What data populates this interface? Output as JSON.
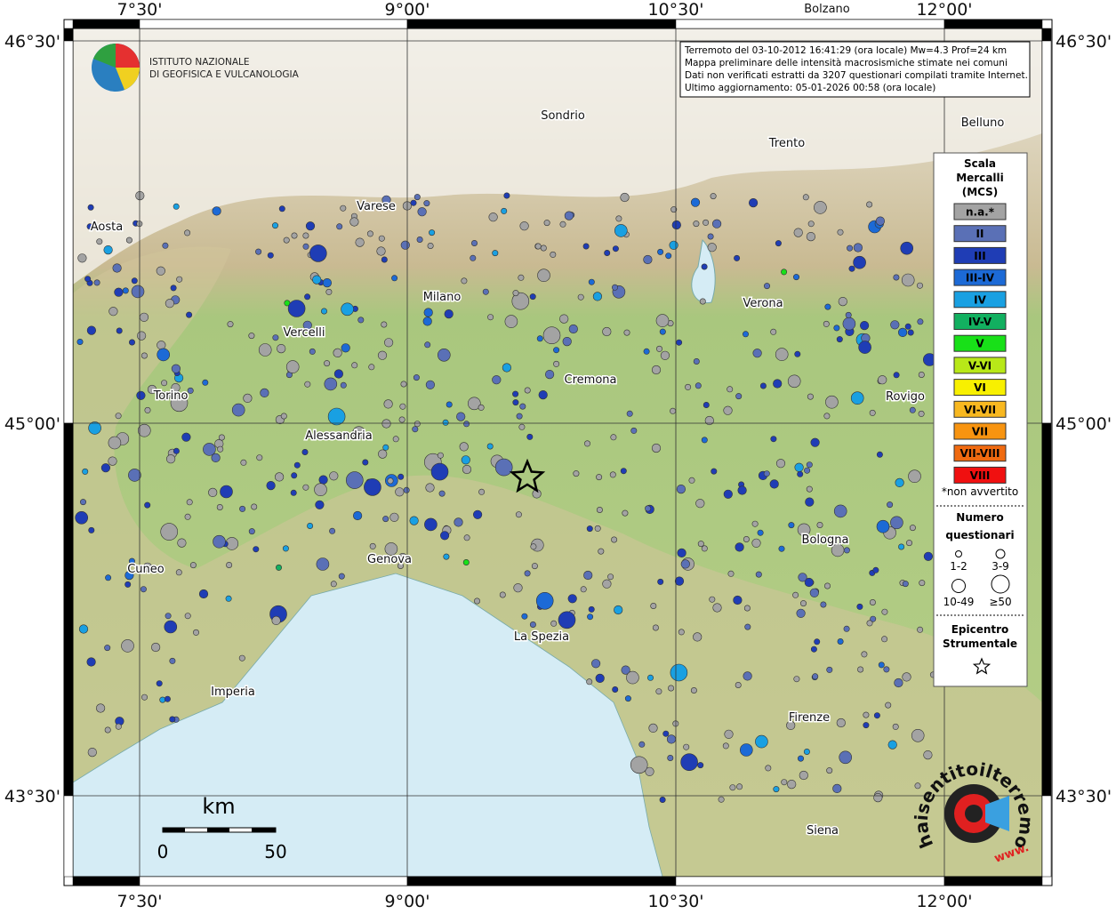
{
  "header": {
    "institute": [
      "ISTITUTO NAZIONALE",
      "DI GEOFISICA E VULCANOLOGIA"
    ],
    "info": [
      "Terremoto del 03-10-2012 16:41:29 (ora locale) Mw=4.3 Prof=24 km",
      "Mappa preliminare delle intensità macrosismiche stimate nei comuni",
      "Dati non verificati estratti da 3207 questionari compilati tramite Internet.",
      "Ultimo aggiornamento: 05-01-2026 00:58 (ora locale)"
    ]
  },
  "map": {
    "longitude_labels": [
      "7°30'",
      "9°00'",
      "10°30'",
      "12°00'"
    ],
    "latitude_labels": [
      "46°30'",
      "45°00'",
      "43°30'"
    ],
    "places": [
      "Bolzano",
      "Sondrio",
      "Belluno",
      "Trento",
      "Varese",
      "Aosta",
      "Milano",
      "Verona",
      "Vercelli",
      "Cremona",
      "Torino",
      "Rovigo",
      "Alessandria",
      "Bologna",
      "Cuneo",
      "Genova",
      "La Spezia",
      "Imperia",
      "Firenze",
      "Siena"
    ]
  },
  "legend": {
    "title": [
      "Scala",
      "Mercalli",
      "(MCS)"
    ],
    "classes": [
      {
        "label": "n.a.*",
        "color": "#a3a3a3"
      },
      {
        "label": "II",
        "color": "#5a70b6"
      },
      {
        "label": "III",
        "color": "#1f3db5"
      },
      {
        "label": "III-IV",
        "color": "#1c6ad6"
      },
      {
        "label": "IV",
        "color": "#19a0e2"
      },
      {
        "label": "IV-V",
        "color": "#12b060"
      },
      {
        "label": "V",
        "color": "#18e018"
      },
      {
        "label": "V-VI",
        "color": "#b8e818"
      },
      {
        "label": "VI",
        "color": "#f8f000"
      },
      {
        "label": "VI-VII",
        "color": "#f8b820"
      },
      {
        "label": "VII",
        "color": "#f89410"
      },
      {
        "label": "VII-VIII",
        "color": "#f06a10"
      },
      {
        "label": "VIII",
        "color": "#f01010"
      }
    ],
    "note": "*non avvertito",
    "count_title": [
      "Numero",
      "questionari"
    ],
    "count_sizes": [
      "1-2",
      "3-9",
      "10-49",
      "≥50"
    ],
    "epicenter_title": [
      "Epicentro",
      "Strumentale"
    ]
  },
  "scale_bar": {
    "unit": "km",
    "labels": [
      "0",
      "50"
    ]
  },
  "footer_logo": {
    "text": "haisentitoilterremoto.it",
    "www": "www."
  }
}
